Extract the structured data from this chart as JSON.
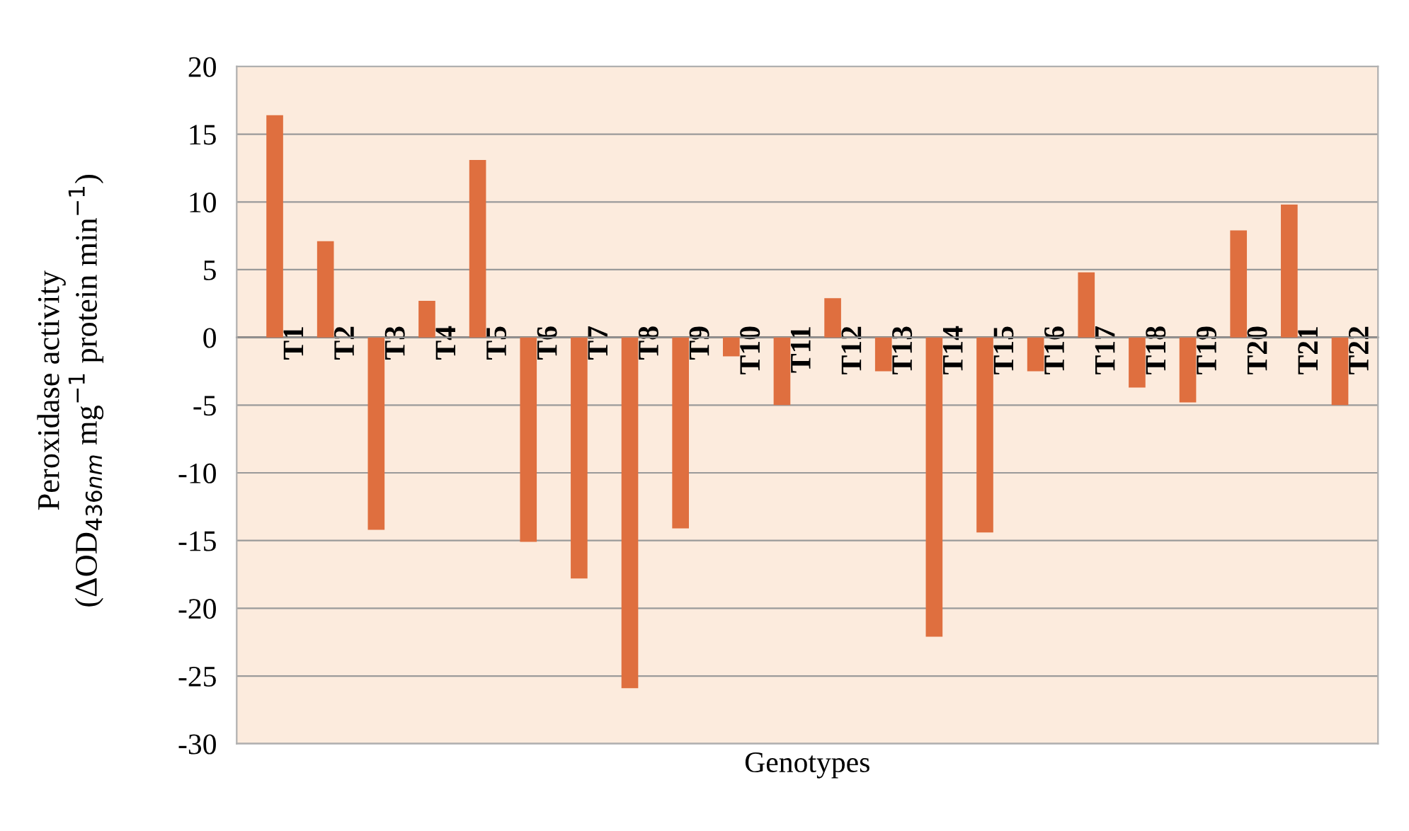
{
  "chart_data": {
    "type": "bar",
    "xlabel": "Genotypes",
    "ylabel": "Peroxidase activity\n(ΔOD$_{436nm}$ mg$^{−1}$ protein min$^{−1}$)",
    "categories": [
      "T1",
      "T2",
      "T3",
      "T4",
      "T5",
      "T6",
      "T7",
      "T8",
      "T9",
      "T10",
      "T11",
      "T12",
      "T13",
      "T14",
      "T15",
      "T16",
      "T17",
      "T18",
      "T19",
      "T20",
      "T21",
      "T22"
    ],
    "values": [
      16.4,
      7.1,
      -14.2,
      2.7,
      13.1,
      -15.1,
      -17.8,
      -25.9,
      -14.1,
      -1.4,
      -5.0,
      2.9,
      -2.5,
      -22.1,
      -14.4,
      -2.5,
      4.8,
      -3.7,
      -4.8,
      7.9,
      9.8,
      -5.0
    ],
    "color": "#df6f3f",
    "ylim": [
      -30,
      20
    ],
    "yticks": [
      -30,
      -25,
      -20,
      -15,
      -10,
      -5,
      0,
      5,
      10,
      15,
      20
    ],
    "grid": "y"
  }
}
